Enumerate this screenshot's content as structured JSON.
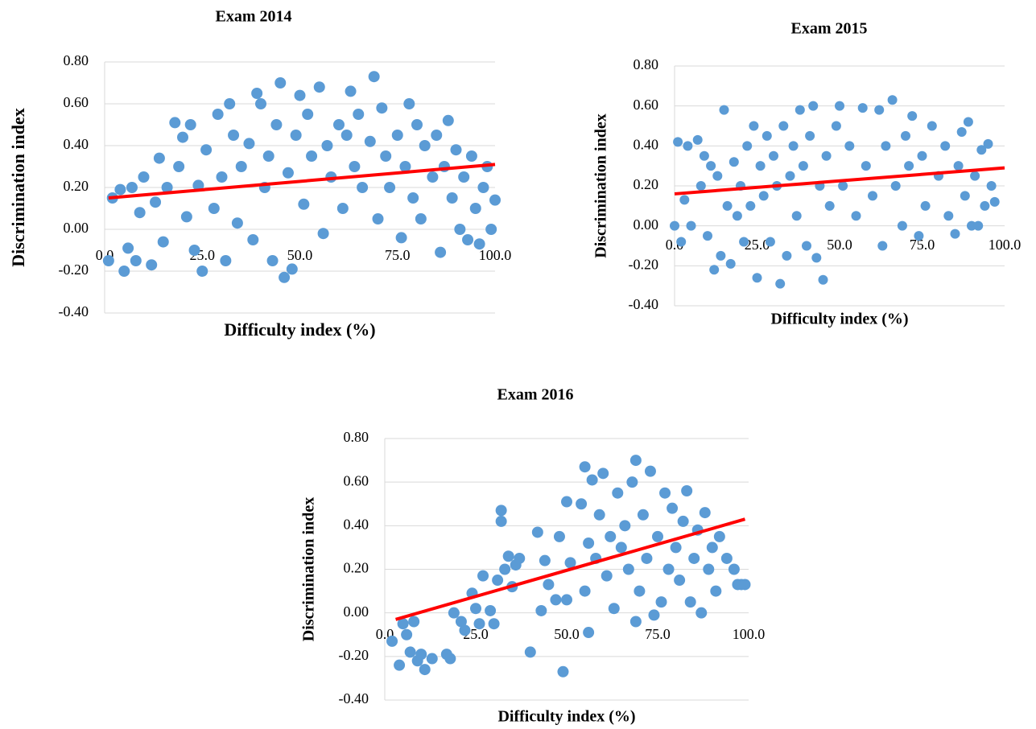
{
  "chart_data": [
    {
      "type": "scatter",
      "title": "Exam 2014",
      "x_label": "Difficulty index (%)",
      "y_label": "Discrimination  index",
      "color": "#5b9bd5",
      "grid": true,
      "xlim": [
        0,
        100
      ],
      "ylim": [
        -0.4,
        0.8
      ],
      "xticks": [
        {
          "value": 0,
          "label": "0.0"
        },
        {
          "value": 25,
          "label": "25.0"
        },
        {
          "value": 50,
          "label": "50.0"
        },
        {
          "value": 75,
          "label": "75.0"
        },
        {
          "value": 100,
          "label": "100.0"
        }
      ],
      "yticks": [
        {
          "value": 0.8,
          "label": "0.80"
        },
        {
          "value": 0.6,
          "label": "0.60"
        },
        {
          "value": 0.4,
          "label": "0.40"
        },
        {
          "value": 0.2,
          "label": "0.20"
        },
        {
          "value": 0,
          "label": "0.00"
        },
        {
          "value": -0.2,
          "label": "-0.20"
        },
        {
          "value": -0.4,
          "label": "-0.40"
        }
      ],
      "x": [
        1,
        2,
        4,
        5,
        6,
        7,
        8,
        9,
        10,
        12,
        13,
        14,
        15,
        16,
        18,
        19,
        20,
        21,
        22,
        23,
        24,
        25,
        26,
        28,
        29,
        30,
        31,
        32,
        33,
        34,
        35,
        37,
        38,
        39,
        40,
        41,
        42,
        43,
        44,
        45,
        46,
        47,
        48,
        49,
        50,
        51,
        52,
        53,
        55,
        56,
        57,
        58,
        60,
        61,
        62,
        63,
        64,
        65,
        66,
        68,
        69,
        70,
        71,
        72,
        73,
        75,
        76,
        77,
        78,
        79,
        80,
        81,
        82,
        84,
        85,
        86,
        87,
        88,
        89,
        90,
        91,
        92,
        93,
        94,
        95,
        96,
        97,
        98,
        99,
        100
      ],
      "values": [
        -0.15,
        0.15,
        0.19,
        -0.2,
        -0.09,
        0.2,
        -0.15,
        0.08,
        0.25,
        -0.17,
        0.13,
        0.34,
        -0.06,
        0.2,
        0.51,
        0.3,
        0.44,
        0.06,
        0.5,
        -0.1,
        0.21,
        -0.2,
        0.38,
        0.1,
        0.55,
        0.25,
        -0.15,
        0.6,
        0.45,
        0.03,
        0.3,
        0.41,
        -0.05,
        0.65,
        0.6,
        0.2,
        0.35,
        -0.15,
        0.5,
        0.7,
        -0.23,
        0.27,
        -0.19,
        0.45,
        0.64,
        0.12,
        0.55,
        0.35,
        0.68,
        -0.02,
        0.4,
        0.25,
        0.5,
        0.1,
        0.45,
        0.66,
        0.3,
        0.55,
        0.2,
        0.42,
        0.73,
        0.05,
        0.58,
        0.35,
        0.2,
        0.45,
        -0.04,
        0.3,
        0.6,
        0.15,
        0.5,
        0.05,
        0.4,
        0.25,
        0.45,
        -0.11,
        0.3,
        0.52,
        0.15,
        0.38,
        0,
        0.25,
        -0.05,
        0.35,
        0.1,
        -0.07,
        0.2,
        0.3,
        0,
        0.14
      ],
      "trendline": {
        "color": "#ff0000",
        "x": [
          1,
          100
        ],
        "values": [
          0.15,
          0.31
        ]
      }
    },
    {
      "type": "scatter",
      "title": "Exam 2015",
      "x_label": "Difficulty index (%)",
      "y_label": "Discrimination  index",
      "color": "#5b9bd5",
      "grid": true,
      "xlim": [
        0,
        100
      ],
      "ylim": [
        -0.4,
        0.8
      ],
      "xticks": [
        {
          "value": 0,
          "label": "0.0"
        },
        {
          "value": 25,
          "label": "25.0"
        },
        {
          "value": 50,
          "label": "50.0"
        },
        {
          "value": 75,
          "label": "75.0"
        },
        {
          "value": 100,
          "label": "100.0"
        }
      ],
      "yticks": [
        {
          "value": 0.8,
          "label": "0.80"
        },
        {
          "value": 0.6,
          "label": "0.60"
        },
        {
          "value": 0.4,
          "label": "0.40"
        },
        {
          "value": 0.2,
          "label": "0.20"
        },
        {
          "value": 0,
          "label": "0.00"
        },
        {
          "value": -0.2,
          "label": "-0.20"
        },
        {
          "value": -0.4,
          "label": "-0.40"
        }
      ],
      "x": [
        0,
        1,
        2,
        3,
        4,
        5,
        7,
        8,
        9,
        10,
        11,
        12,
        13,
        14,
        15,
        16,
        17,
        18,
        19,
        20,
        21,
        22,
        23,
        24,
        25,
        26,
        27,
        28,
        29,
        30,
        31,
        32,
        33,
        34,
        35,
        36,
        37,
        38,
        39,
        40,
        41,
        42,
        43,
        44,
        45,
        46,
        47,
        49,
        50,
        51,
        53,
        55,
        57,
        58,
        60,
        62,
        63,
        64,
        66,
        67,
        69,
        70,
        71,
        72,
        74,
        75,
        76,
        78,
        80,
        82,
        83,
        85,
        86,
        87,
        88,
        89,
        90,
        91,
        92,
        93,
        94,
        95,
        96,
        97
      ],
      "values": [
        0,
        0.42,
        -0.08,
        0.13,
        0.4,
        0,
        0.43,
        0.2,
        0.35,
        -0.05,
        0.3,
        -0.22,
        0.25,
        -0.15,
        0.58,
        0.1,
        -0.19,
        0.32,
        0.05,
        0.2,
        -0.08,
        0.4,
        0.1,
        0.5,
        -0.26,
        0.3,
        0.15,
        0.45,
        -0.08,
        0.35,
        0.2,
        -0.29,
        0.5,
        -0.15,
        0.25,
        0.4,
        0.05,
        0.58,
        0.3,
        -0.1,
        0.45,
        0.6,
        -0.16,
        0.2,
        -0.27,
        0.35,
        0.1,
        0.5,
        0.6,
        0.2,
        0.4,
        0.05,
        0.59,
        0.3,
        0.15,
        0.58,
        -0.1,
        0.4,
        0.63,
        0.2,
        0,
        0.45,
        0.3,
        0.55,
        -0.05,
        0.35,
        0.1,
        0.5,
        0.25,
        0.4,
        0.05,
        -0.04,
        0.3,
        0.47,
        0.15,
        0.52,
        0,
        0.25,
        0,
        0.38,
        0.1,
        0.41,
        0.2,
        0.12
      ],
      "trendline": {
        "color": "#ff0000",
        "x": [
          0,
          100
        ],
        "values": [
          0.16,
          0.29
        ]
      }
    },
    {
      "type": "scatter",
      "title": "Exam 2016",
      "x_label": "Difficulty index (%)",
      "y_label": "Discrimination  index",
      "color": "#5b9bd5",
      "grid": true,
      "xlim": [
        0,
        100
      ],
      "ylim": [
        -0.4,
        0.8
      ],
      "xticks": [
        {
          "value": 0,
          "label": "0.0"
        },
        {
          "value": 25,
          "label": "25.0"
        },
        {
          "value": 50,
          "label": "50.0"
        },
        {
          "value": 75,
          "label": "75.0"
        },
        {
          "value": 100,
          "label": "100.0"
        }
      ],
      "yticks": [
        {
          "value": 0.8,
          "label": "0.80"
        },
        {
          "value": 0.6,
          "label": "0.60"
        },
        {
          "value": 0.4,
          "label": "0.40"
        },
        {
          "value": 0.2,
          "label": "0.20"
        },
        {
          "value": 0,
          "label": "0.00"
        },
        {
          "value": -0.2,
          "label": "-0.20"
        },
        {
          "value": -0.4,
          "label": "-0.40"
        }
      ],
      "x": [
        2,
        4,
        5,
        6,
        7,
        8,
        9,
        10,
        11,
        13,
        17,
        18,
        19,
        21,
        22,
        24,
        25,
        26,
        27,
        29,
        30,
        31,
        32,
        32,
        33,
        34,
        35,
        36,
        37,
        40,
        42,
        43,
        44,
        45,
        47,
        48,
        49,
        50,
        50,
        51,
        54,
        55,
        55,
        56,
        56,
        57,
        58,
        59,
        60,
        61,
        62,
        63,
        64,
        65,
        66,
        67,
        68,
        69,
        69,
        70,
        71,
        72,
        73,
        74,
        75,
        76,
        77,
        78,
        79,
        80,
        81,
        82,
        83,
        84,
        85,
        86,
        87,
        88,
        89,
        90,
        91,
        92,
        94,
        96,
        97,
        98,
        99
      ],
      "values": [
        -0.13,
        -0.24,
        -0.05,
        -0.1,
        -0.18,
        -0.04,
        -0.22,
        -0.19,
        -0.26,
        -0.21,
        -0.19,
        -0.21,
        0,
        -0.04,
        -0.08,
        0.09,
        0.02,
        -0.05,
        0.17,
        0.01,
        -0.05,
        0.15,
        0.47,
        0.42,
        0.2,
        0.26,
        0.12,
        0.22,
        0.25,
        -0.18,
        0.37,
        0.01,
        0.24,
        0.13,
        0.06,
        0.35,
        -0.27,
        0.51,
        0.06,
        0.23,
        0.5,
        0.67,
        0.1,
        -0.09,
        0.32,
        0.61,
        0.25,
        0.45,
        0.64,
        0.17,
        0.35,
        0.02,
        0.55,
        0.3,
        0.4,
        0.2,
        0.6,
        -0.04,
        0.7,
        0.1,
        0.45,
        0.25,
        0.65,
        -0.01,
        0.35,
        0.05,
        0.55,
        0.2,
        0.48,
        0.3,
        0.15,
        0.42,
        0.56,
        0.05,
        0.25,
        0.38,
        0,
        0.46,
        0.2,
        0.3,
        0.1,
        0.35,
        0.25,
        0.2,
        0.13,
        0.13,
        0.13
      ],
      "trendline": {
        "color": "#ff0000",
        "x": [
          3,
          99
        ],
        "values": [
          -0.03,
          0.43
        ]
      }
    }
  ]
}
